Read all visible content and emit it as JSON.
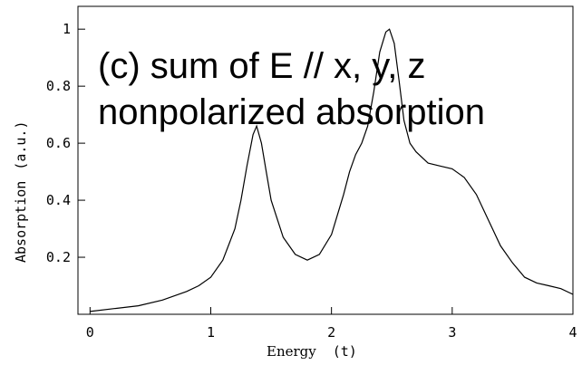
{
  "chart_data": {
    "type": "line",
    "title": "",
    "xlabel_word": "Energy",
    "xlabel_unit": "(t)",
    "ylabel_word": "Absorption",
    "ylabel_unit": "(a.u.)",
    "annotation_lines": [
      "(c) sum of E // x, y, z",
      "nonpolarized absorption"
    ],
    "xlim": [
      -0.1,
      4.0
    ],
    "ylim": [
      0.0,
      1.08
    ],
    "x_ticks": [
      0,
      1,
      2,
      3,
      4
    ],
    "x_tick_labels": [
      "0",
      "1",
      "2",
      "3",
      "4"
    ],
    "y_ticks": [
      0.2,
      0.4,
      0.6,
      0.8,
      1.0
    ],
    "y_tick_labels": [
      "0.2",
      "0.4",
      "0.6",
      "0.8",
      "1"
    ],
    "grid": false,
    "line_color": "#000000",
    "series": [
      {
        "x": [
          0.0,
          0.2,
          0.4,
          0.6,
          0.8,
          0.9,
          1.0,
          1.1,
          1.2,
          1.25,
          1.3,
          1.35,
          1.38,
          1.42,
          1.46,
          1.5,
          1.6,
          1.7,
          1.8,
          1.9,
          2.0,
          2.1,
          2.15,
          2.2,
          2.25,
          2.3,
          2.35,
          2.4,
          2.45,
          2.48,
          2.52,
          2.56,
          2.6,
          2.65,
          2.7,
          2.8,
          2.9,
          3.0,
          3.1,
          3.2,
          3.3,
          3.4,
          3.5,
          3.6,
          3.7,
          3.8,
          3.9,
          4.0
        ],
        "y": [
          0.01,
          0.02,
          0.03,
          0.05,
          0.08,
          0.1,
          0.13,
          0.19,
          0.3,
          0.4,
          0.52,
          0.63,
          0.66,
          0.6,
          0.5,
          0.4,
          0.27,
          0.21,
          0.19,
          0.21,
          0.28,
          0.42,
          0.5,
          0.56,
          0.6,
          0.66,
          0.78,
          0.92,
          0.99,
          1.0,
          0.95,
          0.82,
          0.68,
          0.6,
          0.57,
          0.53,
          0.52,
          0.51,
          0.48,
          0.42,
          0.33,
          0.24,
          0.18,
          0.13,
          0.11,
          0.1,
          0.09,
          0.07
        ]
      }
    ]
  }
}
